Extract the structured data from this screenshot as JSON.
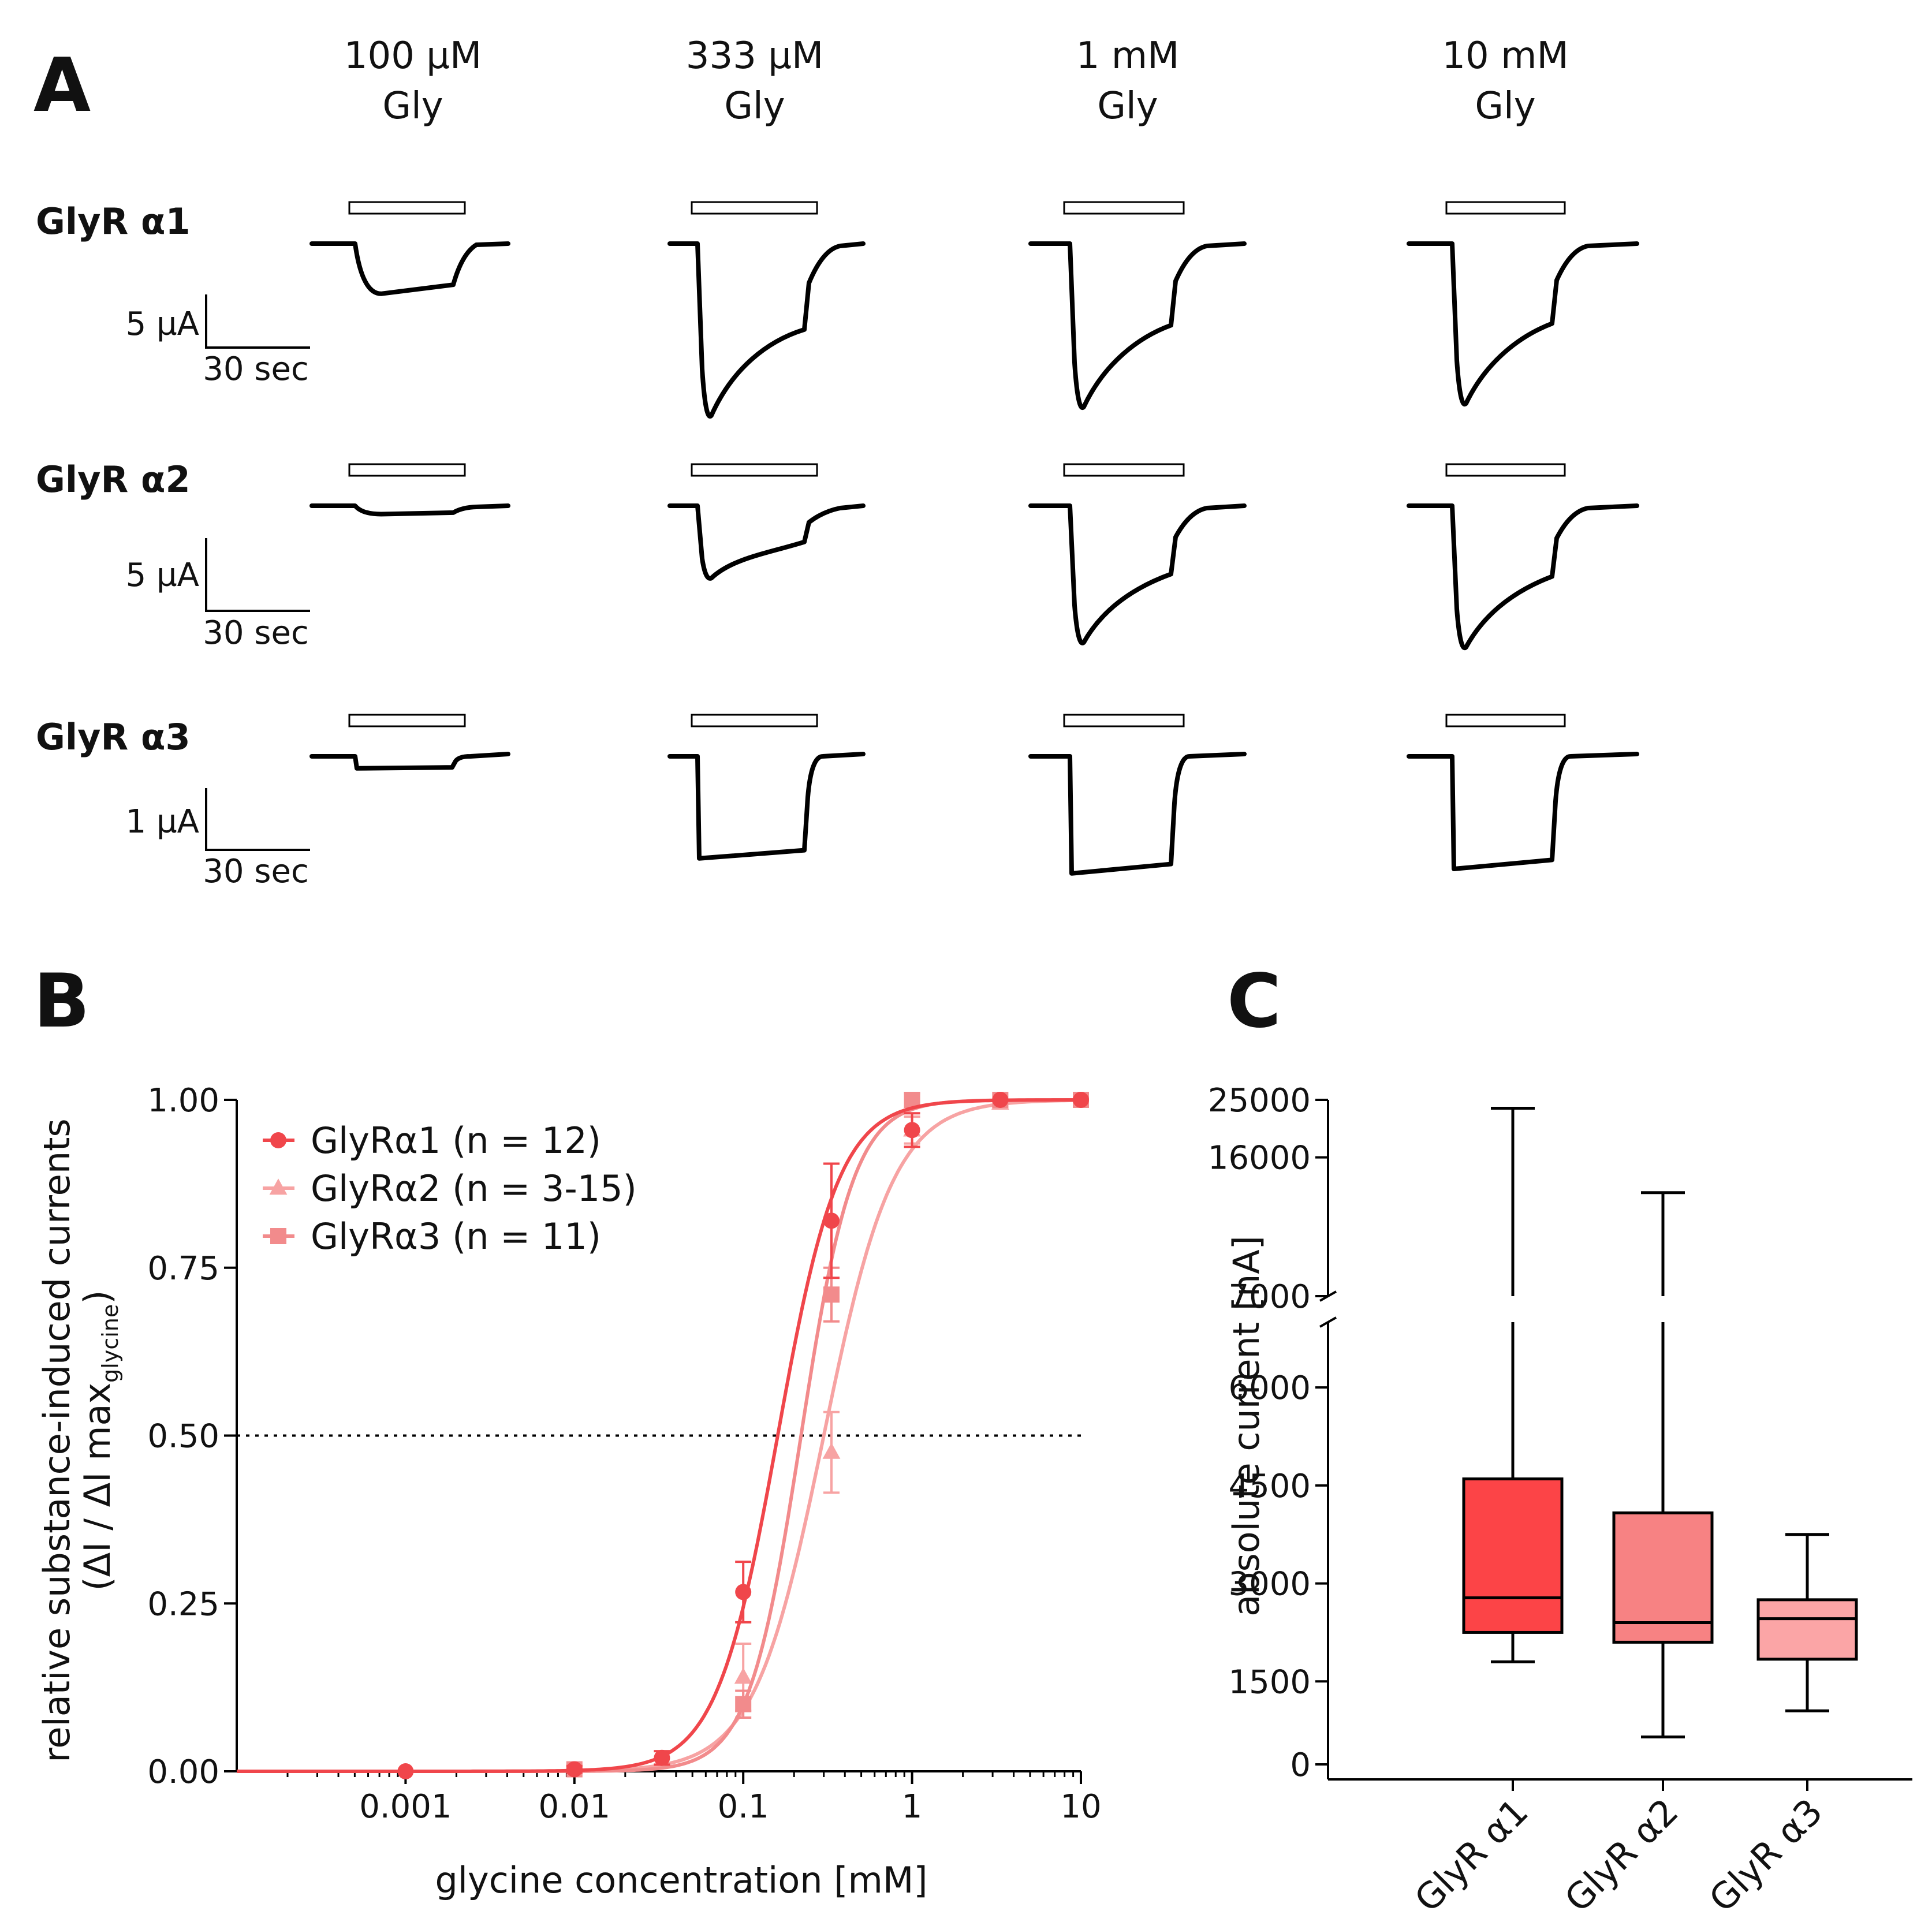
{
  "panels": {
    "A": {
      "label": "A",
      "columns": [
        {
          "l1": "100 µM",
          "l2": "Gly"
        },
        {
          "l1": "333 µM",
          "l2": "Gly"
        },
        {
          "l1": "1 mM",
          "l2": "Gly"
        },
        {
          "l1": "10 mM",
          "l2": "Gly"
        }
      ],
      "rows": [
        {
          "label": "GlyR α1",
          "current_scale": "5 µA",
          "time_scale": "30 sec",
          "peaks": [
            0.28,
            1.0,
            0.95,
            0.93
          ]
        },
        {
          "label": "GlyR α2",
          "current_scale": "5 µA",
          "time_scale": "30 sec",
          "peaks": [
            0.05,
            0.45,
            0.85,
            0.88
          ]
        },
        {
          "label": "GlyR α3",
          "current_scale": "1 µA",
          "time_scale": "30 sec",
          "peaks": [
            0.08,
            0.68,
            0.78,
            0.75
          ]
        }
      ]
    },
    "B": {
      "label": "B"
    },
    "C": {
      "label": "C"
    }
  },
  "chart_data": [
    {
      "type": "line",
      "panel": "B",
      "xscale": "log",
      "xlabel": "glycine concentration [mM]",
      "ylabel1": "relative substance-induced currents",
      "ylabel2_main": "(ΔI / ΔI max",
      "ylabel2_sub": "glycine",
      "ylabel2_end": ")",
      "xlim": [
        0.0001,
        10
      ],
      "ylim": [
        0,
        1
      ],
      "x_ticks": [
        0.001,
        0.01,
        0.1,
        1,
        10
      ],
      "x_tick_labels": [
        "0.001",
        "0.01",
        "0.1",
        "1",
        "10"
      ],
      "y_ticks": [
        0,
        0.25,
        0.5,
        0.75,
        1
      ],
      "y_tick_labels": [
        "0.00",
        "0.25",
        "0.50",
        "0.75",
        "1.00"
      ],
      "reference_line": 0.5,
      "series": [
        {
          "name": "GlyRα1 (n = 12)",
          "marker": "circle",
          "color": "#f0464b",
          "x": [
            0.001,
            0.01,
            0.033,
            0.1,
            0.333,
            1,
            3.33,
            10
          ],
          "y": [
            0.0,
            0.003,
            0.02,
            0.267,
            0.82,
            0.955,
            1.0,
            1.0
          ],
          "err": [
            0,
            0.005,
            0.01,
            0.045,
            0.085,
            0.025,
            0,
            0
          ],
          "fit": {
            "ec50": 0.16,
            "hill": 2.4
          }
        },
        {
          "name": "GlyRα2 (n = 3-15)",
          "marker": "triangle",
          "color": "#f7a3a3",
          "x": [
            0.1,
            0.333,
            1,
            3.33
          ],
          "y": [
            0.14,
            0.475,
            0.955,
            0.995
          ],
          "err": [
            0.05,
            0.06,
            0.02,
            0.005
          ],
          "fit": {
            "ec50": 0.3,
            "hill": 2.1
          }
        },
        {
          "name": "GlyRα3 (n = 11)",
          "marker": "square",
          "color": "#f28b8c",
          "x": [
            0.01,
            0.1,
            0.333,
            1,
            3.33,
            10
          ],
          "y": [
            0.003,
            0.1,
            0.71,
            1.0,
            1.0,
            1.0
          ],
          "err": [
            0.003,
            0.02,
            0.04,
            0.01,
            0,
            0
          ],
          "fit": {
            "ec50": 0.22,
            "hill": 2.8
          }
        }
      ]
    },
    {
      "type": "box",
      "panel": "C",
      "ylabel": "absolute current [nA]",
      "categories": [
        "GlyR α1",
        "GlyR α2",
        "GlyR α3"
      ],
      "y_ticks_lower": [
        0,
        1500,
        3000,
        4500,
        6000,
        7000
      ],
      "y_tick_labels_lower": [
        "0",
        "1500",
        "3000",
        "4500",
        "6000",
        "7000"
      ],
      "y_ticks_upper": [
        16000,
        25000
      ],
      "y_tick_labels_upper": [
        "16000",
        "25000"
      ],
      "axis_break": [
        7000,
        7000
      ],
      "boxes": [
        {
          "name": "GlyR α1",
          "color": "#fc4447",
          "min": 1800,
          "q1": 2250,
          "median": 2780,
          "q3": 4600,
          "max": 23500
        },
        {
          "name": "GlyR α2",
          "color": "#f78283",
          "min": 650,
          "q1": 2100,
          "median": 2400,
          "q3": 4080,
          "max": 12000
        },
        {
          "name": "GlyR α3",
          "color": "#fba5a6",
          "min": 1050,
          "q1": 1840,
          "median": 2460,
          "q3": 2750,
          "max": 3750
        }
      ]
    }
  ]
}
